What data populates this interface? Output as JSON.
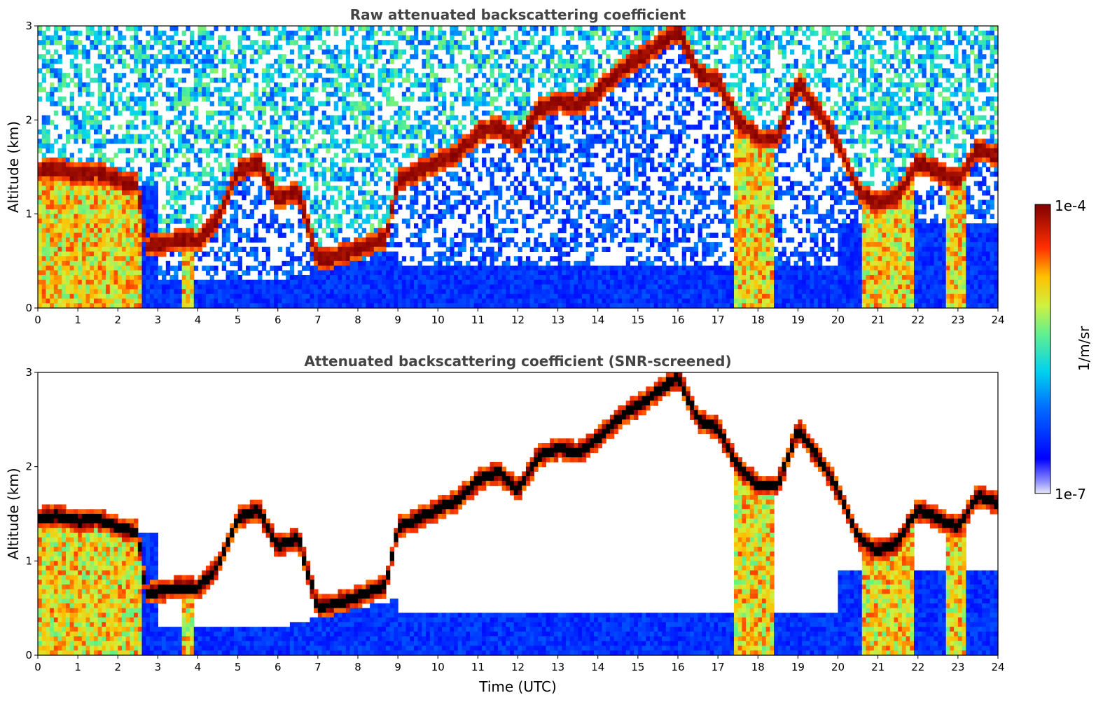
{
  "chart_data": [
    {
      "type": "heatmap",
      "title": "Raw attenuated backscattering coefficient",
      "ylabel": "Altitude (km)",
      "xlabel": "",
      "x_ticks": [
        "0",
        "1",
        "2",
        "3",
        "4",
        "5",
        "6",
        "7",
        "8",
        "9",
        "10",
        "11",
        "12",
        "13",
        "14",
        "15",
        "16",
        "17",
        "18",
        "19",
        "20",
        "21",
        "22",
        "23",
        "24"
      ],
      "y_ticks": [
        "0",
        "1",
        "2",
        "3"
      ],
      "xlim": [
        0,
        24
      ],
      "ylim": [
        0,
        3
      ],
      "screened": false
    },
    {
      "type": "heatmap",
      "title": "Attenuated backscattering coefficient (SNR-screened)",
      "ylabel": "Altitude (km)",
      "xlabel": "Time (UTC)",
      "x_ticks": [
        "0",
        "1",
        "2",
        "3",
        "4",
        "5",
        "6",
        "7",
        "8",
        "9",
        "10",
        "11",
        "12",
        "13",
        "14",
        "15",
        "16",
        "17",
        "18",
        "19",
        "20",
        "21",
        "22",
        "23",
        "24"
      ],
      "y_ticks": [
        "0",
        "1",
        "2",
        "3"
      ],
      "xlim": [
        0,
        24
      ],
      "ylim": [
        0,
        3
      ],
      "screened": true
    }
  ],
  "colorbar": {
    "label": "1/m/sr",
    "max_label": "1e-4",
    "min_label": "1e-7",
    "scale": "log",
    "colormap": "jet"
  },
  "cloud_layer": [
    [
      0,
      1.45
    ],
    [
      0.5,
      1.48
    ],
    [
      1,
      1.42
    ],
    [
      1.5,
      1.45
    ],
    [
      2,
      1.35
    ],
    [
      2.5,
      1.3
    ],
    [
      2.7,
      0.65
    ],
    [
      3.1,
      0.68
    ],
    [
      3.5,
      0.72
    ],
    [
      4,
      0.7
    ],
    [
      4.5,
      0.95
    ],
    [
      5,
      1.45
    ],
    [
      5.5,
      1.55
    ],
    [
      6,
      1.15
    ],
    [
      6.5,
      1.25
    ],
    [
      7,
      0.5
    ],
    [
      7.5,
      0.55
    ],
    [
      8,
      0.62
    ],
    [
      8.7,
      0.75
    ],
    [
      9,
      1.35
    ],
    [
      9.5,
      1.45
    ],
    [
      10,
      1.55
    ],
    [
      10.5,
      1.65
    ],
    [
      11,
      1.85
    ],
    [
      11.5,
      1.95
    ],
    [
      12,
      1.75
    ],
    [
      12.5,
      2.1
    ],
    [
      13,
      2.2
    ],
    [
      13.5,
      2.15
    ],
    [
      14,
      2.3
    ],
    [
      14.5,
      2.5
    ],
    [
      15,
      2.65
    ],
    [
      15.5,
      2.8
    ],
    [
      16,
      2.95
    ],
    [
      16.5,
      2.5
    ],
    [
      17,
      2.4
    ],
    [
      17.5,
      2.0
    ],
    [
      18,
      1.8
    ],
    [
      18.5,
      1.8
    ],
    [
      19,
      2.4
    ],
    [
      19.5,
      2.1
    ],
    [
      20,
      1.75
    ],
    [
      20.5,
      1.25
    ],
    [
      21,
      1.1
    ],
    [
      21.5,
      1.2
    ],
    [
      22,
      1.55
    ],
    [
      22.5,
      1.45
    ],
    [
      23,
      1.35
    ],
    [
      23.5,
      1.7
    ],
    [
      24,
      1.6
    ]
  ]
}
